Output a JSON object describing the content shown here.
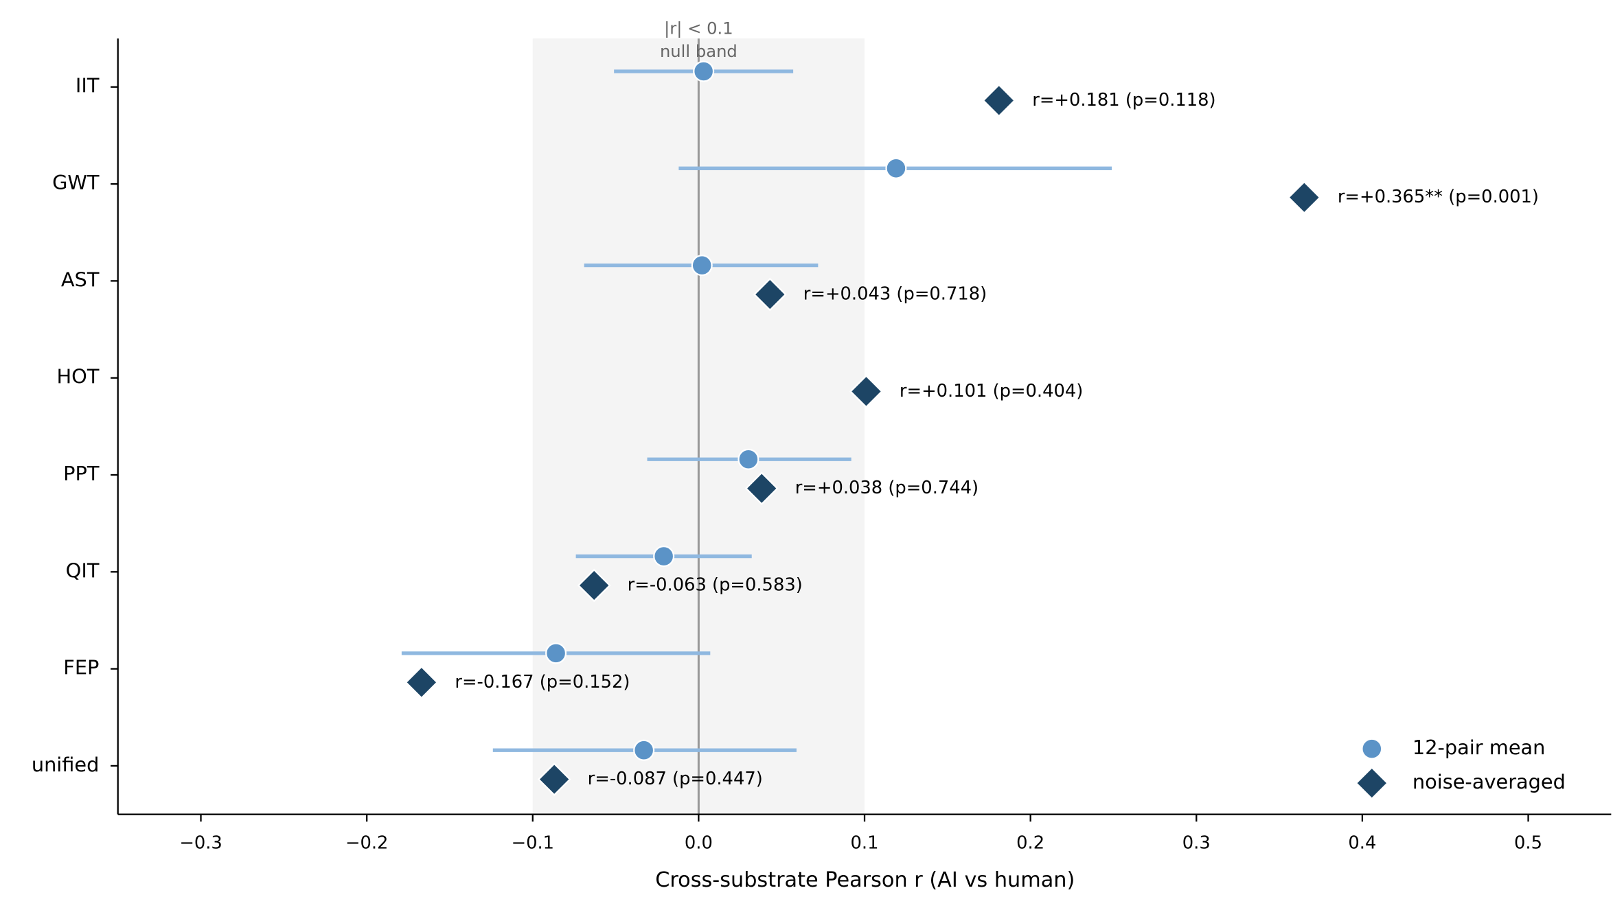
{
  "chart_data": {
    "type": "dot",
    "x_label": "Cross-substrate Pearson r (AI vs human)",
    "categories": [
      "IIT",
      "GWT",
      "AST",
      "HOT",
      "PPT",
      "QIT",
      "FEP",
      "unified"
    ],
    "series": [
      {
        "name": "12-pair mean",
        "color": "#5b93c7",
        "error_color": "#8fb8e0",
        "values": [
          0.003,
          0.119,
          0.002,
          null,
          0.03,
          -0.021,
          -0.086,
          -0.033
        ],
        "ci_low": [
          -0.051,
          -0.012,
          -0.069,
          null,
          -0.031,
          -0.074,
          -0.179,
          -0.124
        ],
        "ci_high": [
          0.057,
          0.249,
          0.072,
          null,
          0.092,
          0.032,
          0.007,
          0.059
        ]
      },
      {
        "name": "noise-averaged",
        "color": "#1d4565",
        "values": [
          0.181,
          0.365,
          0.043,
          0.101,
          0.038,
          -0.063,
          -0.167,
          -0.087
        ],
        "value_labels": [
          "r=+0.181 (p=0.118)",
          "r=+0.365** (p=0.001)",
          "r=+0.043 (p=0.718)",
          "r=+0.101 (p=0.404)",
          "r=+0.038 (p=0.744)",
          "r=-0.063 (p=0.583)",
          "r=-0.167 (p=0.152)",
          "r=-0.087 (p=0.447)"
        ]
      }
    ],
    "null_band": [
      -0.1,
      0.1
    ],
    "band_label": [
      "|r| < 0.1",
      "null band"
    ],
    "ref_line": 0,
    "xlim": [
      -0.35,
      0.55
    ],
    "xticks": [
      {
        "value": -0.3,
        "label": "−0.3"
      },
      {
        "value": -0.2,
        "label": "−0.2"
      },
      {
        "value": -0.1,
        "label": "−0.1"
      },
      {
        "value": 0,
        "label": "0.0"
      },
      0.1,
      0.2,
      0.3,
      0.4,
      0.5
    ],
    "legend": "lower right"
  }
}
